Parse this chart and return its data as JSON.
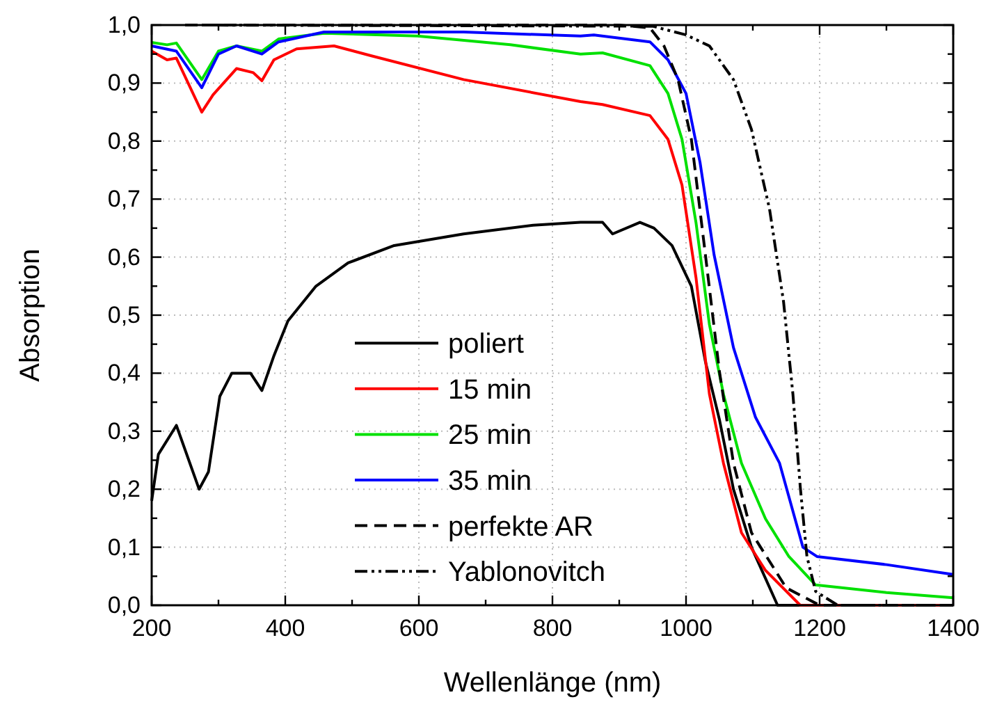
{
  "chart_data": {
    "type": "line",
    "xlabel": "Wellenlänge (nm)",
    "ylabel": "Absorption",
    "xlim": [
      200,
      1400
    ],
    "xticks": [
      200,
      {
        "value": 300,
        "label": null
      },
      400,
      {
        "value": 500,
        "label": null
      },
      600,
      {
        "value": 700,
        "label": null
      },
      800,
      {
        "value": 900,
        "label": null
      },
      1000,
      {
        "value": 1100,
        "label": null
      },
      1200,
      {
        "value": 1300,
        "label": null
      },
      1400
    ],
    "ylim": [
      0,
      1
    ],
    "yticks": [
      {
        "value": 0,
        "label": "0,0"
      },
      {
        "value": 0.05,
        "label": null
      },
      {
        "value": 0.1,
        "label": "0,1"
      },
      {
        "value": 0.15,
        "label": null
      },
      {
        "value": 0.2,
        "label": "0,2"
      },
      {
        "value": 0.25,
        "label": null
      },
      {
        "value": 0.3,
        "label": "0,3"
      },
      {
        "value": 0.35,
        "label": null
      },
      {
        "value": 0.4,
        "label": "0,4"
      },
      {
        "value": 0.45,
        "label": null
      },
      {
        "value": 0.5,
        "label": "0,5"
      },
      {
        "value": 0.55,
        "label": null
      },
      {
        "value": 0.6,
        "label": "0,6"
      },
      {
        "value": 0.65,
        "label": null
      },
      {
        "value": 0.7,
        "label": "0,7"
      },
      {
        "value": 0.75,
        "label": null
      },
      {
        "value": 0.8,
        "label": "0,8"
      },
      {
        "value": 0.85,
        "label": null
      },
      {
        "value": 0.9,
        "label": "0,9"
      },
      {
        "value": 0.95,
        "label": null
      },
      {
        "value": 1,
        "label": "1,0"
      }
    ],
    "grid": true,
    "legend": "bottom",
    "marker": "none",
    "series": [
      {
        "name": "poliert",
        "color": "#000000",
        "line_style": "solid",
        "x": [
          200,
          210,
          237,
          271,
          285,
          302,
          320,
          348,
          365,
          383,
          404,
          446,
          494,
          563,
          667,
          771,
          842,
          875,
          890,
          931,
          952,
          979,
          1008,
          1029,
          1050,
          1071,
          1098,
          1137,
          1400
        ],
        "values": [
          0.18,
          0.26,
          0.31,
          0.2,
          0.23,
          0.36,
          0.4,
          0.4,
          0.37,
          0.43,
          0.49,
          0.55,
          0.59,
          0.62,
          0.64,
          0.655,
          0.66,
          0.66,
          0.64,
          0.66,
          0.65,
          0.62,
          0.55,
          0.42,
          0.32,
          0.2,
          0.1,
          0.0,
          0.0
        ]
      },
      {
        "name": "15 min",
        "color": "#ff0000",
        "line_style": "solid",
        "x": [
          200,
          223,
          237,
          275,
          292,
          327,
          352,
          365,
          383,
          417,
          473,
          529,
          667,
          842,
          875,
          946,
          973,
          994,
          1015,
          1035,
          1056,
          1083,
          1119,
          1171,
          1400
        ],
        "values": [
          0.955,
          0.94,
          0.943,
          0.85,
          0.88,
          0.925,
          0.918,
          0.904,
          0.94,
          0.959,
          0.964,
          0.947,
          0.906,
          0.868,
          0.863,
          0.844,
          0.803,
          0.724,
          0.564,
          0.364,
          0.245,
          0.125,
          0.06,
          0.0,
          0.0
        ]
      },
      {
        "name": "25 min",
        "color": "#00e000",
        "line_style": "solid",
        "x": [
          200,
          223,
          237,
          275,
          300,
          327,
          365,
          390,
          458,
          598,
          737,
          842,
          875,
          946,
          973,
          994,
          1015,
          1035,
          1056,
          1083,
          1119,
          1154,
          1194,
          1300,
          1400
        ],
        "values": [
          0.97,
          0.966,
          0.969,
          0.906,
          0.955,
          0.964,
          0.955,
          0.976,
          0.986,
          0.981,
          0.966,
          0.95,
          0.952,
          0.93,
          0.882,
          0.803,
          0.659,
          0.484,
          0.364,
          0.245,
          0.149,
          0.084,
          0.035,
          0.022,
          0.013
        ]
      },
      {
        "name": "35 min",
        "color": "#0000ff",
        "line_style": "solid",
        "x": [
          200,
          237,
          275,
          300,
          327,
          365,
          390,
          458,
          667,
          842,
          862,
          946,
          973,
          1000,
          1021,
          1042,
          1071,
          1104,
          1140,
          1175,
          1196,
          1300,
          1400
        ],
        "values": [
          0.964,
          0.955,
          0.892,
          0.95,
          0.964,
          0.95,
          0.971,
          0.988,
          0.988,
          0.981,
          0.983,
          0.971,
          0.94,
          0.882,
          0.763,
          0.604,
          0.444,
          0.324,
          0.245,
          0.1,
          0.084,
          0.07,
          0.053
        ]
      },
      {
        "name": "perfekte AR",
        "color": "#000000",
        "line_style": "dashed",
        "x": [
          250,
          900,
          946,
          967,
          988,
          1008,
          1029,
          1050,
          1071,
          1098,
          1150,
          1200,
          1400
        ],
        "values": [
          1.0,
          1.0,
          0.995,
          0.964,
          0.906,
          0.803,
          0.604,
          0.403,
          0.245,
          0.125,
          0.03,
          0.0,
          0.0
        ]
      },
      {
        "name": "Yablonovitch",
        "color": "#000000",
        "line_style": "dotted",
        "x": [
          250,
          950,
          1000,
          1035,
          1071,
          1098,
          1125,
          1146,
          1160,
          1171,
          1181,
          1194,
          1227,
          1400
        ],
        "values": [
          1.0,
          0.998,
          0.983,
          0.964,
          0.906,
          0.82,
          0.683,
          0.523,
          0.364,
          0.204,
          0.084,
          0.024,
          0.0,
          0.0
        ]
      }
    ]
  }
}
